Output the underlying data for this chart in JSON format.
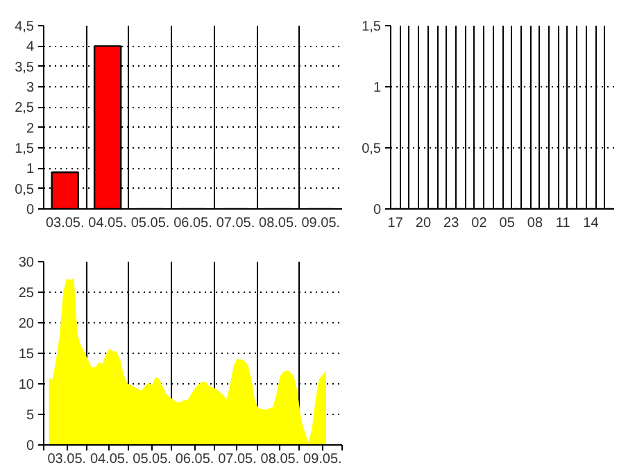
{
  "chart_data": [
    {
      "type": "bar",
      "categories": [
        "03.05.",
        "04.05.",
        "05.05.",
        "06.05.",
        "07.05.",
        "08.05.",
        "09.05."
      ],
      "values": [
        0.9,
        4,
        0,
        0,
        0,
        0,
        0
      ],
      "color": "#ff0000",
      "ylim": [
        0,
        4.5
      ],
      "yticks": [
        0,
        {
          "value": 0.5,
          "label": "0,5"
        },
        1,
        {
          "value": 1.5,
          "label": "1,5"
        },
        2,
        {
          "value": 2.5,
          "label": "2,5"
        },
        3,
        {
          "value": 3.5,
          "label": "3,5"
        },
        4,
        {
          "value": 4.5,
          "label": "4,5"
        }
      ],
      "grid": true
    },
    {
      "type": "bar",
      "categories": [
        "17",
        null,
        null,
        "20",
        null,
        null,
        "23",
        null,
        null,
        "02",
        null,
        null,
        "05",
        null,
        null,
        "08",
        null,
        null,
        "11",
        null,
        null,
        "14",
        null,
        null
      ],
      "values": [
        0,
        0,
        0,
        0,
        0,
        0,
        0,
        0,
        0,
        0,
        0,
        0,
        0,
        0,
        0,
        0,
        0,
        0,
        0,
        0,
        0,
        0,
        0,
        0
      ],
      "color": "#000000",
      "ylim": [
        0,
        1.5
      ],
      "yticks": [
        0,
        {
          "value": 0.5,
          "label": "0,5"
        },
        1,
        {
          "value": 1.5,
          "label": "1,5"
        }
      ],
      "grid": true
    },
    {
      "type": "area",
      "categories": [
        null,
        null,
        null,
        null,
        null,
        null,
        "03.05.",
        null,
        null,
        null,
        null,
        null,
        null,
        null,
        null,
        null,
        null,
        null,
        "04.05.",
        null,
        null,
        null,
        null,
        null,
        null,
        null,
        null,
        null,
        null,
        null,
        "05.05.",
        null,
        null,
        null,
        null,
        null,
        null,
        null,
        null,
        null,
        null,
        null,
        "06.05.",
        null,
        null,
        null,
        null,
        null,
        null,
        null,
        null,
        null,
        null,
        null,
        "07.05.",
        null,
        null,
        null,
        null,
        null,
        null,
        null,
        null,
        null,
        null,
        null,
        "08.05.",
        null,
        null,
        null,
        null,
        null,
        null,
        null,
        null,
        null,
        null,
        null,
        "09.05.",
        null,
        null,
        null,
        null,
        null
      ],
      "values": [
        null,
        11,
        10.7,
        14,
        18,
        25,
        27.3,
        27,
        27.3,
        18,
        16.2,
        15.2,
        13.9,
        12.7,
        12.7,
        13.5,
        13.3,
        14.8,
        15.8,
        15.3,
        15.3,
        14,
        11.5,
        10.1,
        9.8,
        9.5,
        9.2,
        8.9,
        9.6,
        10.2,
        9.8,
        11.2,
        10.8,
        9.6,
        8.3,
        7.8,
        7.4,
        7,
        7,
        7.4,
        7.4,
        8.3,
        9.2,
        9.9,
        10.3,
        10.4,
        9.7,
        9.4,
        9.2,
        8.7,
        8.2,
        7.5,
        10,
        13,
        14.1,
        14,
        13.8,
        13.1,
        10.6,
        7.2,
        6,
        5.9,
        5.7,
        6,
        6.2,
        8.2,
        11.2,
        12,
        12.2,
        11.9,
        11.1,
        8.4,
        4,
        2.1,
        0.4,
        2.6,
        7.3,
        10.7,
        11.5,
        12.2,
        null,
        null,
        null,
        null
      ],
      "color": "#ffff00",
      "ylim": [
        0,
        30
      ],
      "yticks": [
        0,
        5,
        10,
        15,
        20,
        25,
        30
      ],
      "grid": true
    }
  ]
}
